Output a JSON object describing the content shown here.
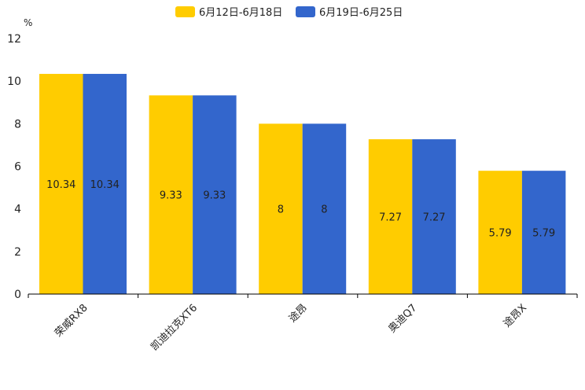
{
  "chart_data": {
    "type": "bar",
    "title": "",
    "xlabel": "",
    "ylabel": "%",
    "ylim": [
      0,
      12
    ],
    "yticks": [
      0,
      2,
      4,
      6,
      8,
      10,
      12
    ],
    "categories": [
      "荣威RX8",
      "凯迪拉克XT6",
      "途昂",
      "奥迪Q7",
      "途昂X"
    ],
    "series": [
      {
        "name": "6月12日-6月18日",
        "color": "#ffcc00",
        "values": [
          10.34,
          9.33,
          8,
          7.27,
          5.79
        ],
        "labels": [
          "10.34",
          "9.33",
          "8",
          "7.27",
          "5.79"
        ]
      },
      {
        "name": "6月19日-6月25日",
        "color": "#3366cc",
        "values": [
          10.34,
          9.33,
          8,
          7.27,
          5.79
        ],
        "labels": [
          "10.34",
          "9.33",
          "8",
          "7.27",
          "5.79"
        ]
      }
    ],
    "legend": "top-center",
    "grid": false
  }
}
